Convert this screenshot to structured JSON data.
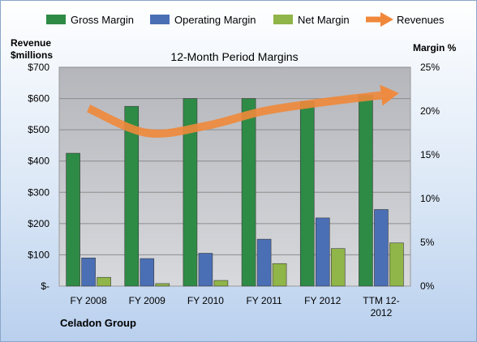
{
  "chart_data": {
    "type": "bar",
    "title": "12-Month Period Margins",
    "ylabel_left_line1": "Revenue",
    "ylabel_left_line2": "$millions",
    "ylabel_right": "Margin %",
    "company": "Celadon Group",
    "categories": [
      [
        "FY 2008"
      ],
      [
        "FY 2009"
      ],
      [
        "FY 2010"
      ],
      [
        "FY 2011"
      ],
      [
        "FY 2012"
      ],
      [
        "TTM 12-",
        "2012"
      ]
    ],
    "left_ticks": [
      "$-",
      "$100",
      "$200",
      "$300",
      "$400",
      "$500",
      "$600",
      "$700"
    ],
    "right_ticks": [
      "0%",
      "5%",
      "10%",
      "15%",
      "20%",
      "25%"
    ],
    "ylim_left": [
      0,
      700
    ],
    "ylim_right": [
      0,
      25
    ],
    "grid": true,
    "legend_position": "top",
    "series": [
      {
        "name": "Gross Margin",
        "axis": "left",
        "kind": "bar",
        "color": "#2e8b46",
        "values": [
          425,
          575,
          600,
          600,
          590,
          610
        ]
      },
      {
        "name": "Operating Margin",
        "axis": "left",
        "kind": "bar",
        "color": "#4a6fb5",
        "values": [
          90,
          88,
          105,
          150,
          218,
          245
        ]
      },
      {
        "name": "Net Margin",
        "axis": "left",
        "kind": "bar",
        "color": "#90b548",
        "values": [
          28,
          8,
          18,
          72,
          120,
          138
        ]
      },
      {
        "name": "Revenues",
        "axis": "right",
        "kind": "arrow",
        "color": "#f0883a",
        "values": [
          20.3,
          17.5,
          18.3,
          20.0,
          21.0,
          21.8
        ]
      }
    ]
  }
}
